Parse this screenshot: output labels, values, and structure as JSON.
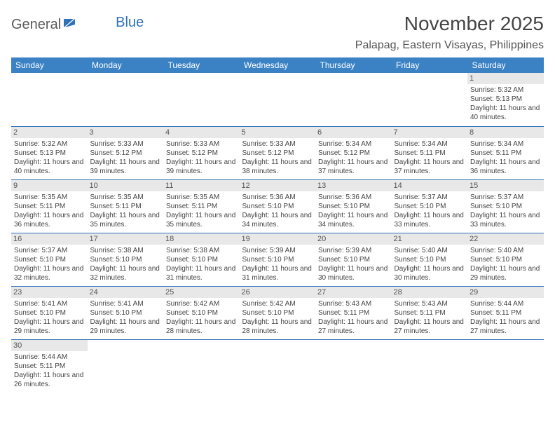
{
  "logo": {
    "part1": "General",
    "part2": "Blue"
  },
  "title": "November 2025",
  "location": "Palapag, Eastern Visayas, Philippines",
  "colors": {
    "header_bg": "#3b82c4",
    "header_text": "#ffffff",
    "border": "#2f72b9",
    "daynum_bg": "#e8e8e8",
    "text": "#444444",
    "logo_gray": "#5a5a5a",
    "logo_blue": "#2f72b9"
  },
  "weekdays": [
    "Sunday",
    "Monday",
    "Tuesday",
    "Wednesday",
    "Thursday",
    "Friday",
    "Saturday"
  ],
  "weeks": [
    [
      {
        "n": "",
        "sr": "",
        "ss": "",
        "dl": ""
      },
      {
        "n": "",
        "sr": "",
        "ss": "",
        "dl": ""
      },
      {
        "n": "",
        "sr": "",
        "ss": "",
        "dl": ""
      },
      {
        "n": "",
        "sr": "",
        "ss": "",
        "dl": ""
      },
      {
        "n": "",
        "sr": "",
        "ss": "",
        "dl": ""
      },
      {
        "n": "",
        "sr": "",
        "ss": "",
        "dl": ""
      },
      {
        "n": "1",
        "sr": "Sunrise: 5:32 AM",
        "ss": "Sunset: 5:13 PM",
        "dl": "Daylight: 11 hours and 40 minutes."
      }
    ],
    [
      {
        "n": "2",
        "sr": "Sunrise: 5:32 AM",
        "ss": "Sunset: 5:13 PM",
        "dl": "Daylight: 11 hours and 40 minutes."
      },
      {
        "n": "3",
        "sr": "Sunrise: 5:33 AM",
        "ss": "Sunset: 5:12 PM",
        "dl": "Daylight: 11 hours and 39 minutes."
      },
      {
        "n": "4",
        "sr": "Sunrise: 5:33 AM",
        "ss": "Sunset: 5:12 PM",
        "dl": "Daylight: 11 hours and 39 minutes."
      },
      {
        "n": "5",
        "sr": "Sunrise: 5:33 AM",
        "ss": "Sunset: 5:12 PM",
        "dl": "Daylight: 11 hours and 38 minutes."
      },
      {
        "n": "6",
        "sr": "Sunrise: 5:34 AM",
        "ss": "Sunset: 5:12 PM",
        "dl": "Daylight: 11 hours and 37 minutes."
      },
      {
        "n": "7",
        "sr": "Sunrise: 5:34 AM",
        "ss": "Sunset: 5:11 PM",
        "dl": "Daylight: 11 hours and 37 minutes."
      },
      {
        "n": "8",
        "sr": "Sunrise: 5:34 AM",
        "ss": "Sunset: 5:11 PM",
        "dl": "Daylight: 11 hours and 36 minutes."
      }
    ],
    [
      {
        "n": "9",
        "sr": "Sunrise: 5:35 AM",
        "ss": "Sunset: 5:11 PM",
        "dl": "Daylight: 11 hours and 36 minutes."
      },
      {
        "n": "10",
        "sr": "Sunrise: 5:35 AM",
        "ss": "Sunset: 5:11 PM",
        "dl": "Daylight: 11 hours and 35 minutes."
      },
      {
        "n": "11",
        "sr": "Sunrise: 5:35 AM",
        "ss": "Sunset: 5:11 PM",
        "dl": "Daylight: 11 hours and 35 minutes."
      },
      {
        "n": "12",
        "sr": "Sunrise: 5:36 AM",
        "ss": "Sunset: 5:10 PM",
        "dl": "Daylight: 11 hours and 34 minutes."
      },
      {
        "n": "13",
        "sr": "Sunrise: 5:36 AM",
        "ss": "Sunset: 5:10 PM",
        "dl": "Daylight: 11 hours and 34 minutes."
      },
      {
        "n": "14",
        "sr": "Sunrise: 5:37 AM",
        "ss": "Sunset: 5:10 PM",
        "dl": "Daylight: 11 hours and 33 minutes."
      },
      {
        "n": "15",
        "sr": "Sunrise: 5:37 AM",
        "ss": "Sunset: 5:10 PM",
        "dl": "Daylight: 11 hours and 33 minutes."
      }
    ],
    [
      {
        "n": "16",
        "sr": "Sunrise: 5:37 AM",
        "ss": "Sunset: 5:10 PM",
        "dl": "Daylight: 11 hours and 32 minutes."
      },
      {
        "n": "17",
        "sr": "Sunrise: 5:38 AM",
        "ss": "Sunset: 5:10 PM",
        "dl": "Daylight: 11 hours and 32 minutes."
      },
      {
        "n": "18",
        "sr": "Sunrise: 5:38 AM",
        "ss": "Sunset: 5:10 PM",
        "dl": "Daylight: 11 hours and 31 minutes."
      },
      {
        "n": "19",
        "sr": "Sunrise: 5:39 AM",
        "ss": "Sunset: 5:10 PM",
        "dl": "Daylight: 11 hours and 31 minutes."
      },
      {
        "n": "20",
        "sr": "Sunrise: 5:39 AM",
        "ss": "Sunset: 5:10 PM",
        "dl": "Daylight: 11 hours and 30 minutes."
      },
      {
        "n": "21",
        "sr": "Sunrise: 5:40 AM",
        "ss": "Sunset: 5:10 PM",
        "dl": "Daylight: 11 hours and 30 minutes."
      },
      {
        "n": "22",
        "sr": "Sunrise: 5:40 AM",
        "ss": "Sunset: 5:10 PM",
        "dl": "Daylight: 11 hours and 29 minutes."
      }
    ],
    [
      {
        "n": "23",
        "sr": "Sunrise: 5:41 AM",
        "ss": "Sunset: 5:10 PM",
        "dl": "Daylight: 11 hours and 29 minutes."
      },
      {
        "n": "24",
        "sr": "Sunrise: 5:41 AM",
        "ss": "Sunset: 5:10 PM",
        "dl": "Daylight: 11 hours and 29 minutes."
      },
      {
        "n": "25",
        "sr": "Sunrise: 5:42 AM",
        "ss": "Sunset: 5:10 PM",
        "dl": "Daylight: 11 hours and 28 minutes."
      },
      {
        "n": "26",
        "sr": "Sunrise: 5:42 AM",
        "ss": "Sunset: 5:10 PM",
        "dl": "Daylight: 11 hours and 28 minutes."
      },
      {
        "n": "27",
        "sr": "Sunrise: 5:43 AM",
        "ss": "Sunset: 5:11 PM",
        "dl": "Daylight: 11 hours and 27 minutes."
      },
      {
        "n": "28",
        "sr": "Sunrise: 5:43 AM",
        "ss": "Sunset: 5:11 PM",
        "dl": "Daylight: 11 hours and 27 minutes."
      },
      {
        "n": "29",
        "sr": "Sunrise: 5:44 AM",
        "ss": "Sunset: 5:11 PM",
        "dl": "Daylight: 11 hours and 27 minutes."
      }
    ],
    [
      {
        "n": "30",
        "sr": "Sunrise: 5:44 AM",
        "ss": "Sunset: 5:11 PM",
        "dl": "Daylight: 11 hours and 26 minutes."
      },
      {
        "n": "",
        "sr": "",
        "ss": "",
        "dl": ""
      },
      {
        "n": "",
        "sr": "",
        "ss": "",
        "dl": ""
      },
      {
        "n": "",
        "sr": "",
        "ss": "",
        "dl": ""
      },
      {
        "n": "",
        "sr": "",
        "ss": "",
        "dl": ""
      },
      {
        "n": "",
        "sr": "",
        "ss": "",
        "dl": ""
      },
      {
        "n": "",
        "sr": "",
        "ss": "",
        "dl": ""
      }
    ]
  ]
}
